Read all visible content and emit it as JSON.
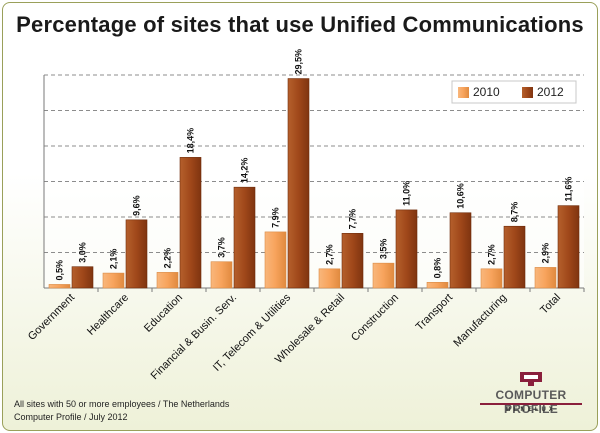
{
  "chart_data": {
    "type": "bar",
    "title": "Percentage of sites that use Unified Communications",
    "categories": [
      "Government",
      "Healthcare",
      "Education",
      "Financial & Busin. Serv.",
      "IT, Telecom & Utilities",
      "Wholesale & Retail",
      "Construction",
      "Transport",
      "Manufacturing",
      "Total"
    ],
    "series": [
      {
        "name": "2010",
        "values": [
          0.5,
          2.1,
          2.2,
          3.7,
          7.9,
          2.7,
          3.5,
          0.8,
          2.7,
          2.9
        ],
        "labels": [
          "0,5%",
          "2,1%",
          "2,2%",
          "3,7%",
          "7,9%",
          "2,7%",
          "3,5%",
          "0,8%",
          "2,7%",
          "2,9%"
        ],
        "color": "#f7a35c"
      },
      {
        "name": "2012",
        "values": [
          3.0,
          9.6,
          18.4,
          14.2,
          29.5,
          7.7,
          11.0,
          10.6,
          8.7,
          11.6
        ],
        "labels": [
          "3,0%",
          "9,6%",
          "18,4%",
          "14,2%",
          "29,5%",
          "7,7%",
          "11,0%",
          "10,6%",
          "8,7%",
          "11,6%"
        ],
        "color": "#a0481a"
      }
    ],
    "ylim": [
      0,
      30
    ],
    "grid": true,
    "legend": "top-right",
    "xlabel": "",
    "ylabel": ""
  },
  "footer": {
    "line1": "All sites with 50 or more employees / The Netherlands",
    "line2": "Computer Profile / July 2012"
  },
  "logo": {
    "name": "COMPUTER PROFILE",
    "sub": "BENELUX",
    "icon": "computer-profile-logo-icon"
  }
}
